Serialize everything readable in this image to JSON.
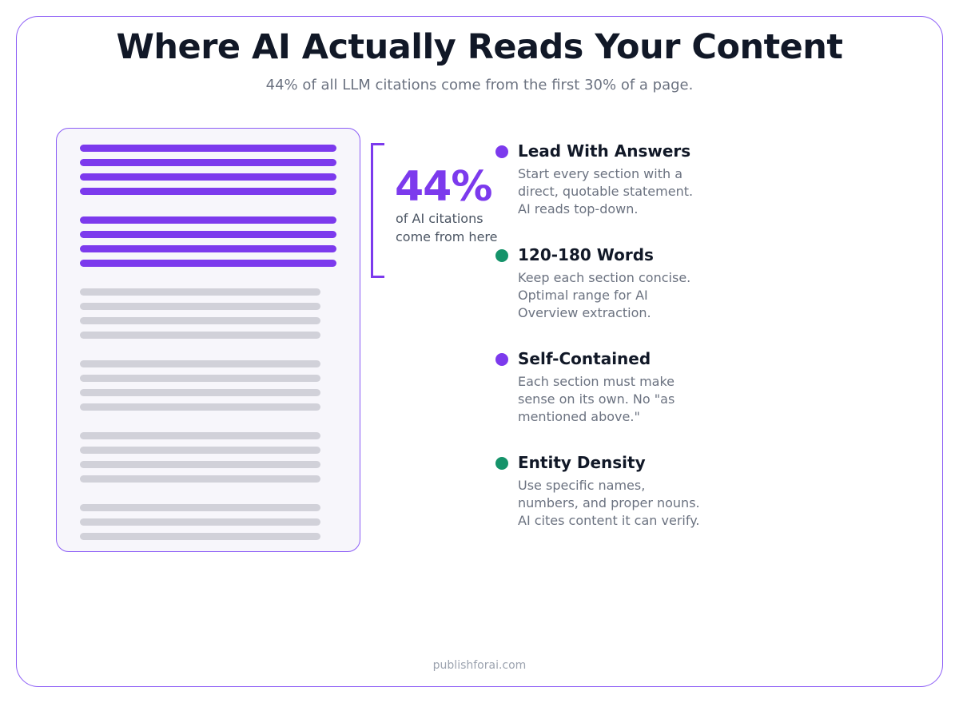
{
  "header": {
    "title": "Where AI Actually Reads Your Content",
    "subtitle": "44% of all LLM citations come from the first 30% of a page."
  },
  "callout": {
    "stat": "44%",
    "caption": "of AI citations come from here"
  },
  "tips": [
    {
      "title": "Lead With Answers",
      "text": "Start every section with a direct, quotable statement. AI reads top-down.",
      "color": "#7c3aed"
    },
    {
      "title": "120-180 Words",
      "text": "Keep each section concise. Optimal range for AI Overview extraction.",
      "color": "#15936a"
    },
    {
      "title": "Self-Contained",
      "text": "Each section must make sense on its own. No \"as mentioned above.\"",
      "color": "#7c3aed"
    },
    {
      "title": "Entity Density",
      "text": "Use specific names, numbers, and proper nouns. AI cites content it can verify.",
      "color": "#15936a"
    }
  ],
  "footer": "publishforai.com"
}
